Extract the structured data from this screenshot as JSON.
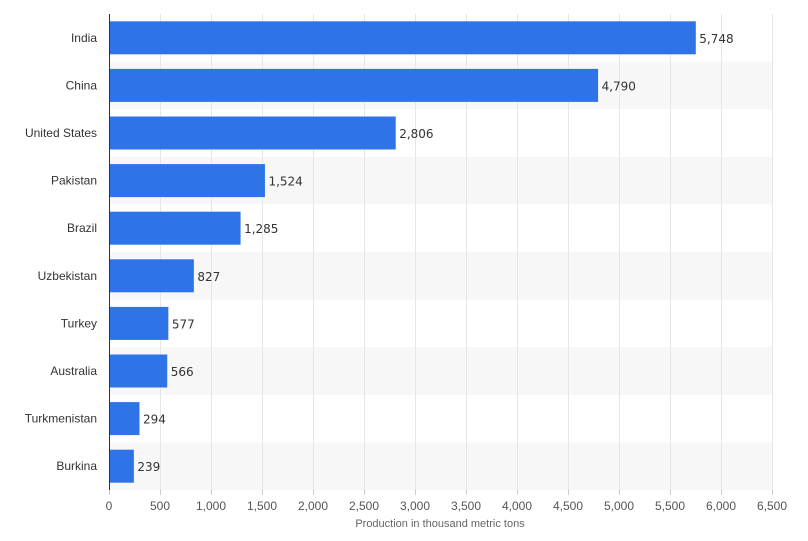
{
  "chart_data": {
    "type": "bar",
    "orientation": "horizontal",
    "categories": [
      "India",
      "China",
      "United States",
      "Pakistan",
      "Brazil",
      "Uzbekistan",
      "Turkey",
      "Australia",
      "Turkmenistan",
      "Burkina"
    ],
    "values": [
      5748,
      4790,
      2806,
      1524,
      1285,
      827,
      577,
      566,
      294,
      239
    ],
    "data_labels": [
      "5,748",
      "4,790",
      "2,806",
      "1,524",
      "1,285",
      "827",
      "577",
      "566",
      "294",
      "239"
    ],
    "xlabel": "Production in thousand metric tons",
    "ylabel": "",
    "xlim": [
      0,
      6500
    ],
    "x_ticks": [
      0,
      500,
      1000,
      1500,
      2000,
      2500,
      3000,
      3500,
      4000,
      4500,
      5000,
      5500,
      6000,
      6500
    ],
    "x_tick_labels": [
      "0",
      "500",
      "1,000",
      "1,500",
      "2,000",
      "2,500",
      "3,000",
      "3,500",
      "4,000",
      "4,500",
      "5,000",
      "5,500",
      "6,000",
      "6,500"
    ],
    "grid": true,
    "bar_color": "#2f73e8",
    "band_color": "#f7f7f7"
  }
}
